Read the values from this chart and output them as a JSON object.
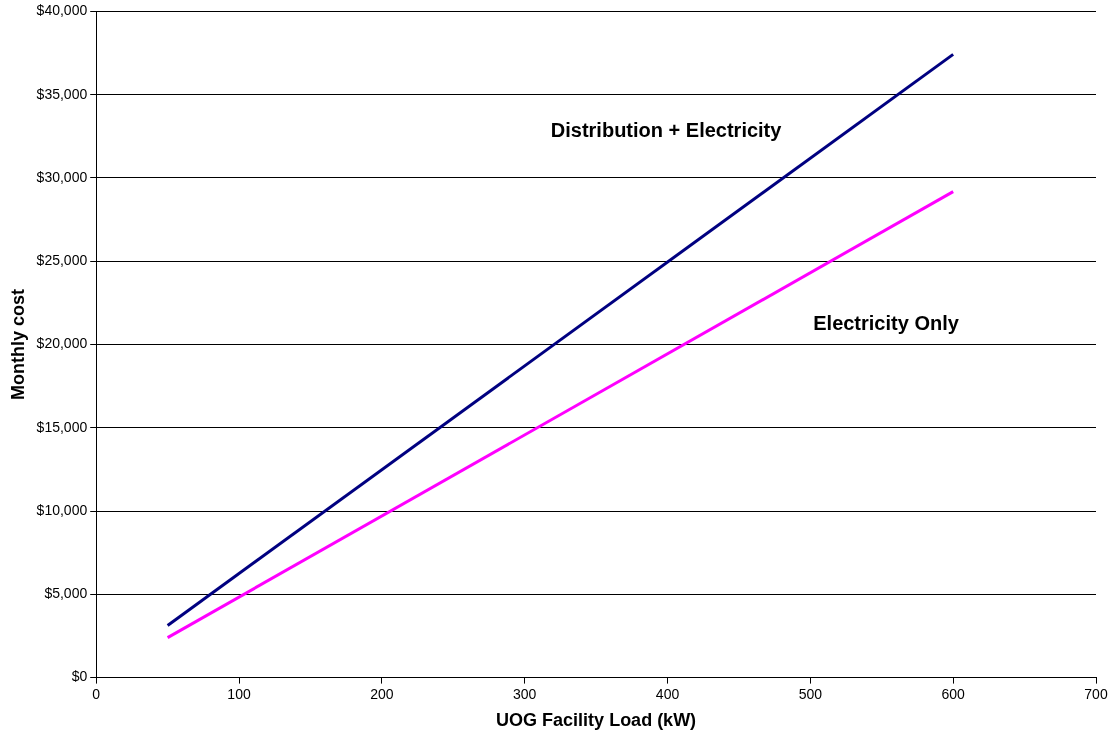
{
  "chart_data": {
    "type": "line",
    "xlabel": "UOG Facility Load (kW)",
    "ylabel": "Monthly cost",
    "x": [
      50,
      600
    ],
    "series": [
      {
        "name": "Distribution + Electricity",
        "color": "#000080",
        "values": [
          3130,
          37420
        ]
      },
      {
        "name": "Electricity Only",
        "color": "#ff00ff",
        "values": [
          2400,
          29180
        ]
      }
    ],
    "xlim": [
      0,
      700
    ],
    "xticks": [
      0,
      100,
      200,
      300,
      400,
      500,
      600,
      700
    ],
    "ylim": [
      0,
      40000
    ],
    "yticks": [
      {
        "value": 0,
        "label": "$0"
      },
      {
        "value": 5000,
        "label": "$5,000"
      },
      {
        "value": 10000,
        "label": "$10,000"
      },
      {
        "value": 15000,
        "label": "$15,000"
      },
      {
        "value": 20000,
        "label": "$20,000"
      },
      {
        "value": 25000,
        "label": "$25,000"
      },
      {
        "value": 30000,
        "label": "$30,000"
      },
      {
        "value": 35000,
        "label": "$35,000"
      },
      {
        "value": 40000,
        "label": "$40,000"
      }
    ],
    "grid": "y",
    "legend": false,
    "marker": "none",
    "line_style": "solid"
  }
}
